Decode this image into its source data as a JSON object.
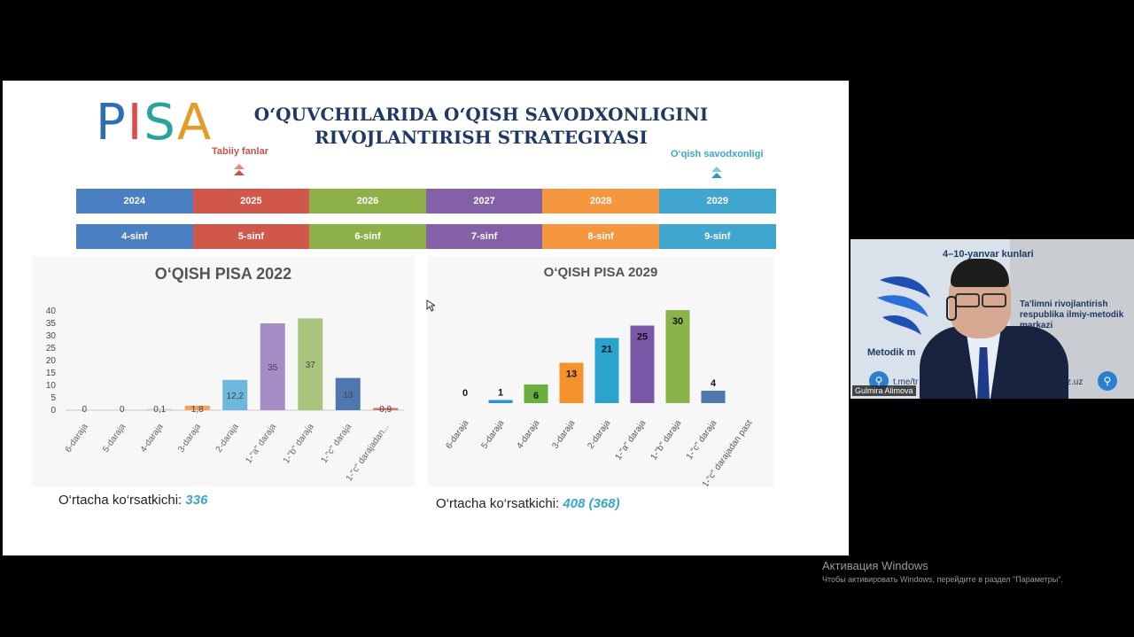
{
  "slide": {
    "logo": "PISA",
    "title_line1": "O‘QUVCHILARIDA O‘QISH SAVODXONLIGINI",
    "title_line2": "RIVOJLANTIRISH STRATEGIYASI",
    "note_left": "Tabiiy fanlar",
    "note_right": "O‘qish savodxonligi",
    "years": [
      "2024",
      "2025",
      "2026",
      "2027",
      "2028",
      "2029"
    ],
    "grades": [
      "4-sinf",
      "5-sinf",
      "6-sinf",
      "7-sinf",
      "8-sinf",
      "9-sinf"
    ],
    "row_colors": [
      "#4a7fc1",
      "#d2574b",
      "#8db048",
      "#8460a8",
      "#f5973e",
      "#40a6cf"
    ],
    "avg1_label": "O‘rtacha ko‘rsatkichi:",
    "avg1_value": "336",
    "avg2_label": "O‘rtacha ko‘rsatkichi:",
    "avg2_value": "408 (368)"
  },
  "chart_data": [
    {
      "type": "bar",
      "title": "O‘QISH PISA 2022",
      "categories": [
        "6-daraja",
        "5-daraja",
        "4-daraja",
        "3-daraja",
        "2-daraja",
        "1-\"a\" daraja",
        "1-\"b\" daraja",
        "1-\"c\" daraja",
        "1-\"c\" darajadan..."
      ],
      "values": [
        0,
        0,
        0.1,
        1.8,
        12.2,
        35,
        37,
        13,
        0.9
      ],
      "data_labels": [
        "0",
        "0",
        "0,1",
        "1,8",
        "12,2",
        "35",
        "37",
        "13",
        "0,9"
      ],
      "colors": [
        "#d0d0d0",
        "#d0d0d0",
        "#d0d0d0",
        "#f5a15b",
        "#6fb7dd",
        "#a48cc4",
        "#a9c47c",
        "#4e77b0",
        "#e0725f"
      ],
      "ylim": [
        0,
        40
      ],
      "yticks": [
        0,
        5,
        10,
        15,
        20,
        25,
        30,
        35,
        40
      ]
    },
    {
      "type": "bar",
      "title": "O‘QISH PISA 2029",
      "categories": [
        "6-daraja",
        "5-daraja",
        "4-daraja",
        "3-daraja",
        "2-daraja",
        "1-\"a\" daraja",
        "1-\"b\" daraja",
        "1-\"c\" daraja",
        "1-\"c\" darajadan past"
      ],
      "values": [
        0,
        1,
        6,
        13,
        21,
        25,
        30,
        4,
        0
      ],
      "data_labels": [
        "0",
        "1",
        "6",
        "13",
        "21",
        "25",
        "30",
        "4",
        ""
      ],
      "colors": [
        "#cccccc",
        "#2d8fd6",
        "#6aae3c",
        "#f5922d",
        "#2aa3cf",
        "#7a58a8",
        "#8ab44a",
        "#4e77b0",
        "#cccccc"
      ],
      "ylim": [
        0,
        32
      ]
    }
  ],
  "video": {
    "dates": "4–10-yanvar kunlari",
    "org_line1": "Ta'limni rivojlantirish",
    "org_line2": "respublika ilmiy-metodik",
    "org_line3": "markazi",
    "left_text": "Metodik m",
    "link1": "t.me/tr",
    "link2": "z.uz",
    "participant": "Gulmira Alimova"
  },
  "os": {
    "activation_title": "Активация Windows",
    "activation_text": "Чтобы активировать Windows, перейдите в раздел \"Параметры\"."
  }
}
